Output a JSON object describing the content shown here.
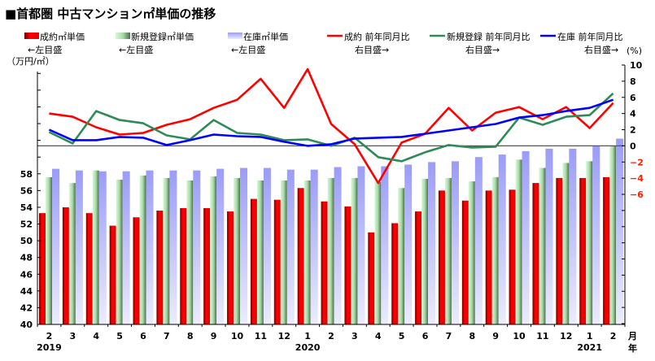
{
  "title": "■首都圏 中古マンション㎡単価の推移",
  "chart_data": {
    "type": "bar+line",
    "title": "■首都圏 中古マンション㎡単価の推移",
    "ylabel_left": "（万円/㎡）",
    "ylabel_right": "(%)",
    "x_unit_month": "月",
    "x_unit_year": "年",
    "categories": [
      "2",
      "3",
      "4",
      "5",
      "6",
      "7",
      "8",
      "9",
      "10",
      "11",
      "12",
      "1",
      "2",
      "3",
      "4",
      "5",
      "6",
      "7",
      "8",
      "9",
      "10",
      "11",
      "12",
      "1",
      "2"
    ],
    "years": [
      {
        "index": 0,
        "label": "2019"
      },
      {
        "index": 11,
        "label": "2020"
      },
      {
        "index": 23,
        "label": "2021"
      }
    ],
    "ylim_left": [
      40,
      71
    ],
    "ylim_right": [
      -22.1,
      10
    ],
    "left_ticks": [
      40,
      42,
      44,
      46,
      48,
      50,
      52,
      54,
      56,
      58
    ],
    "right_ticks": [
      -6,
      -4,
      -2,
      0,
      2,
      4,
      6,
      8,
      10
    ],
    "bar_series": [
      {
        "name": "成約㎡単価",
        "note": "←左目盛",
        "color": "#e00000",
        "values": [
          53.3,
          54.0,
          53.3,
          51.8,
          52.8,
          53.6,
          53.9,
          53.9,
          53.5,
          55.0,
          54.9,
          56.3,
          54.7,
          54.1,
          51.0,
          52.1,
          53.5,
          56.0,
          54.8,
          56.0,
          56.1,
          56.9,
          57.5,
          57.5,
          57.6
        ]
      },
      {
        "name": "新規登録㎡単価",
        "note": "←左目盛",
        "color": "#9ed09e",
        "values": [
          57.6,
          56.9,
          58.4,
          57.3,
          57.8,
          57.5,
          57.2,
          57.7,
          57.5,
          57.2,
          57.2,
          57.2,
          57.5,
          57.5,
          57.0,
          56.3,
          57.4,
          57.5,
          57.1,
          57.6,
          59.7,
          58.7,
          59.3,
          59.5,
          61.3
        ]
      },
      {
        "name": "在庫㎡単価",
        "note": "←左目盛",
        "color": "#9e9ef8",
        "values": [
          58.6,
          58.4,
          58.3,
          58.3,
          58.4,
          58.4,
          58.4,
          58.6,
          58.7,
          58.7,
          58.5,
          58.5,
          58.8,
          58.9,
          58.9,
          59.1,
          59.4,
          59.5,
          60.0,
          60.3,
          60.7,
          61.0,
          61.0,
          61.3,
          62.2
        ]
      }
    ],
    "line_series": [
      {
        "name": "成約 前年同月比",
        "note": "右目盛→",
        "color": "#ff0000",
        "values": [
          4.0,
          3.6,
          2.3,
          1.4,
          1.6,
          2.6,
          3.3,
          4.7,
          5.7,
          8.3,
          4.7,
          9.5,
          2.7,
          0.2,
          -4.6,
          0.4,
          1.5,
          4.7,
          1.9,
          4.1,
          4.8,
          3.3,
          4.8,
          2.2,
          5.3
        ]
      },
      {
        "name": "新規登録 前年同月比",
        "note": "右目盛→",
        "color": "#2e8b57",
        "values": [
          1.7,
          0.3,
          4.3,
          3.2,
          2.8,
          1.3,
          0.8,
          3.2,
          1.6,
          1.4,
          0.7,
          0.8,
          0.0,
          1.0,
          -1.4,
          -1.9,
          -0.8,
          0.1,
          -0.2,
          -0.1,
          3.5,
          2.6,
          3.6,
          3.8,
          6.5
        ]
      },
      {
        "name": "在庫 前年同月比",
        "note": "右目盛→",
        "color": "#0000ff",
        "values": [
          2.0,
          0.7,
          0.7,
          1.1,
          1.0,
          0.1,
          0.7,
          1.4,
          1.2,
          1.1,
          0.5,
          0.0,
          0.2,
          0.9,
          1.0,
          1.1,
          1.5,
          1.9,
          2.3,
          2.7,
          3.5,
          3.8,
          4.3,
          4.7,
          5.7
        ]
      }
    ]
  }
}
